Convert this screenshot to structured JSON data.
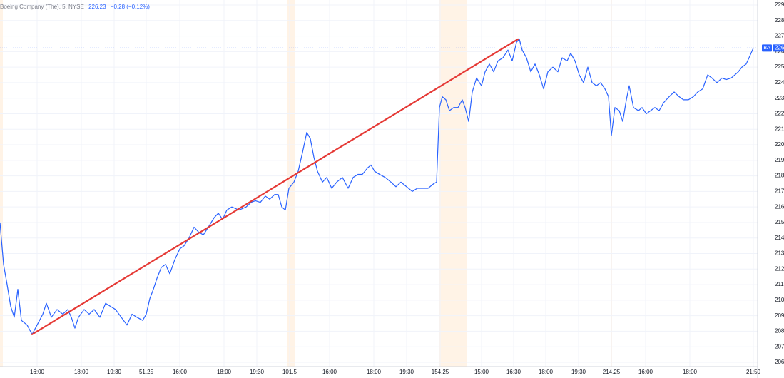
{
  "chart_data": {
    "type": "line",
    "header": {
      "title": "Boeing Company (The), 5, NYSE",
      "price": "226.23",
      "change": "−0.28 (−0.12%)"
    },
    "series": [
      {
        "name": "BA",
        "color": "#2962ff",
        "x": [
          0,
          1.25,
          2.5,
          3.75,
          5,
          6.25,
          7.5,
          9.5,
          11.25,
          13,
          15,
          16.25,
          18,
          20,
          22,
          23.75,
          25,
          26.25,
          27.5,
          29.5,
          31.25,
          33,
          35,
          37,
          38.75,
          40.5,
          42.5,
          44.5,
          46.25,
          48,
          50,
          51.25,
          52.5,
          53.75,
          55,
          56.5,
          58,
          59.5,
          61.25,
          63,
          64.5,
          66.25,
          68,
          69.5,
          71.25,
          73,
          75,
          76.5,
          78,
          79.5,
          81.25,
          82.5,
          83.75,
          85,
          86.25,
          88,
          89.5,
          91.25,
          93,
          94.5,
          96.25,
          97.5,
          98.75,
          100,
          101.25,
          103,
          104.5,
          106,
          107.5,
          108.75,
          110,
          111.25,
          113,
          114.5,
          116.25,
          118,
          120,
          122,
          123.75,
          125.5,
          127,
          128.75,
          130,
          131.25,
          133,
          135,
          137,
          138.75,
          140.5,
          142.5,
          144.5,
          146.25,
          148,
          150,
          152,
          153,
          154,
          155,
          156.25,
          157.5,
          159,
          160.5,
          162,
          163,
          164.25,
          165.5,
          167,
          168.75,
          170,
          171.5,
          173,
          174.5,
          176.25,
          178,
          179.5,
          181,
          182,
          183,
          184.5,
          186,
          187.5,
          189,
          190.5,
          192,
          193.75,
          195.5,
          197,
          198.75,
          200,
          201.5,
          203,
          204.5,
          206,
          207.5,
          209,
          210.5,
          212,
          213.25,
          214.25,
          215.5,
          217,
          218.25,
          219.5,
          220.5,
          222,
          223.75,
          225,
          226.5,
          228,
          229.5,
          231,
          232.5,
          234.5,
          236.25,
          238,
          239.5,
          241.25,
          243,
          244.5,
          246.25,
          248,
          249.5,
          251.25,
          253,
          254.5,
          256.25,
          257.5,
          258.75,
          260,
          261.5,
          262.5,
          264
        ],
        "values": [
          215.0,
          212.3,
          211.0,
          209.6,
          208.9,
          210.7,
          208.7,
          208.4,
          207.8,
          208.4,
          209.1,
          209.8,
          208.9,
          209.4,
          209.1,
          209.4,
          208.9,
          208.2,
          208.9,
          209.4,
          209.1,
          209.4,
          208.9,
          209.8,
          209.6,
          209.4,
          208.9,
          208.4,
          209.1,
          208.9,
          208.7,
          209.1,
          210.1,
          210.7,
          211.4,
          212.1,
          212.3,
          211.7,
          212.6,
          213.3,
          213.5,
          214.0,
          214.7,
          214.4,
          214.2,
          214.7,
          215.3,
          215.6,
          215.2,
          215.8,
          216.0,
          215.9,
          215.8,
          215.9,
          216.0,
          216.3,
          216.4,
          216.3,
          216.7,
          216.5,
          216.8,
          216.8,
          216.0,
          215.8,
          217.2,
          217.6,
          218.3,
          219.5,
          220.8,
          220.4,
          219.2,
          218.3,
          217.6,
          217.9,
          217.2,
          217.6,
          217.9,
          217.2,
          217.9,
          218.1,
          218.1,
          218.5,
          218.7,
          218.3,
          218.1,
          217.9,
          217.6,
          217.3,
          217.6,
          217.3,
          217.0,
          217.2,
          217.2,
          217.2,
          217.5,
          217.6,
          222.4,
          223.1,
          222.9,
          222.2,
          222.4,
          222.4,
          222.9,
          222.4,
          221.5,
          223.4,
          224.3,
          223.8,
          224.7,
          225.2,
          224.7,
          225.4,
          225.6,
          226.1,
          225.4,
          226.6,
          226.8,
          226.1,
          225.6,
          224.7,
          225.2,
          224.5,
          223.6,
          224.7,
          225.0,
          224.7,
          225.6,
          225.4,
          225.9,
          225.4,
          224.5,
          224.0,
          225.0,
          224.0,
          223.8,
          224.0,
          223.6,
          223.1,
          220.6,
          222.4,
          222.2,
          221.5,
          222.9,
          223.8,
          222.4,
          222.2,
          222.4,
          222.0,
          222.2,
          222.4,
          222.2,
          222.7,
          223.1,
          223.4,
          223.1,
          222.9,
          222.9,
          223.1,
          223.4,
          223.6,
          224.5,
          224.3,
          224.0,
          224.3,
          224.2,
          224.3,
          224.5,
          224.7,
          225.0,
          225.2,
          225.6,
          226.23
        ]
      }
    ],
    "trendline": {
      "color": "#e53935",
      "x": [
        11.25,
        181.5
      ],
      "values": [
        207.8,
        226.8
      ]
    },
    "xlim": [
      0,
      265
    ],
    "ylim": [
      206,
      229
    ],
    "xticks": [
      {
        "value": 13,
        "label": "16:00"
      },
      {
        "value": 28.5,
        "label": "18:00"
      },
      {
        "value": 40,
        "label": "19:30"
      },
      51.25,
      {
        "value": 63,
        "label": "16:00"
      },
      {
        "value": 78.5,
        "label": "18:00"
      },
      {
        "value": 90,
        "label": "19:30"
      },
      101.5,
      {
        "value": 115.5,
        "label": "16:00"
      },
      {
        "value": 131,
        "label": "18:00"
      },
      {
        "value": 142.5,
        "label": "19:30"
      },
      154.25,
      {
        "value": 168.75,
        "label": "15:00"
      },
      {
        "value": 180,
        "label": "16:30"
      },
      {
        "value": 191.25,
        "label": "18:00"
      },
      {
        "value": 202.75,
        "label": "19:30"
      },
      214.25,
      {
        "value": 226.25,
        "label": "16:00"
      },
      {
        "value": 241.75,
        "label": "18:00"
      },
      {
        "value": 264,
        "label": "21:50"
      }
    ],
    "yticks": [
      206,
      207,
      208,
      209,
      210,
      211,
      212,
      213,
      214,
      215,
      216,
      217,
      218,
      219,
      220,
      221,
      222,
      223,
      224,
      225,
      226,
      227,
      228,
      229
    ],
    "grid": true
  }
}
